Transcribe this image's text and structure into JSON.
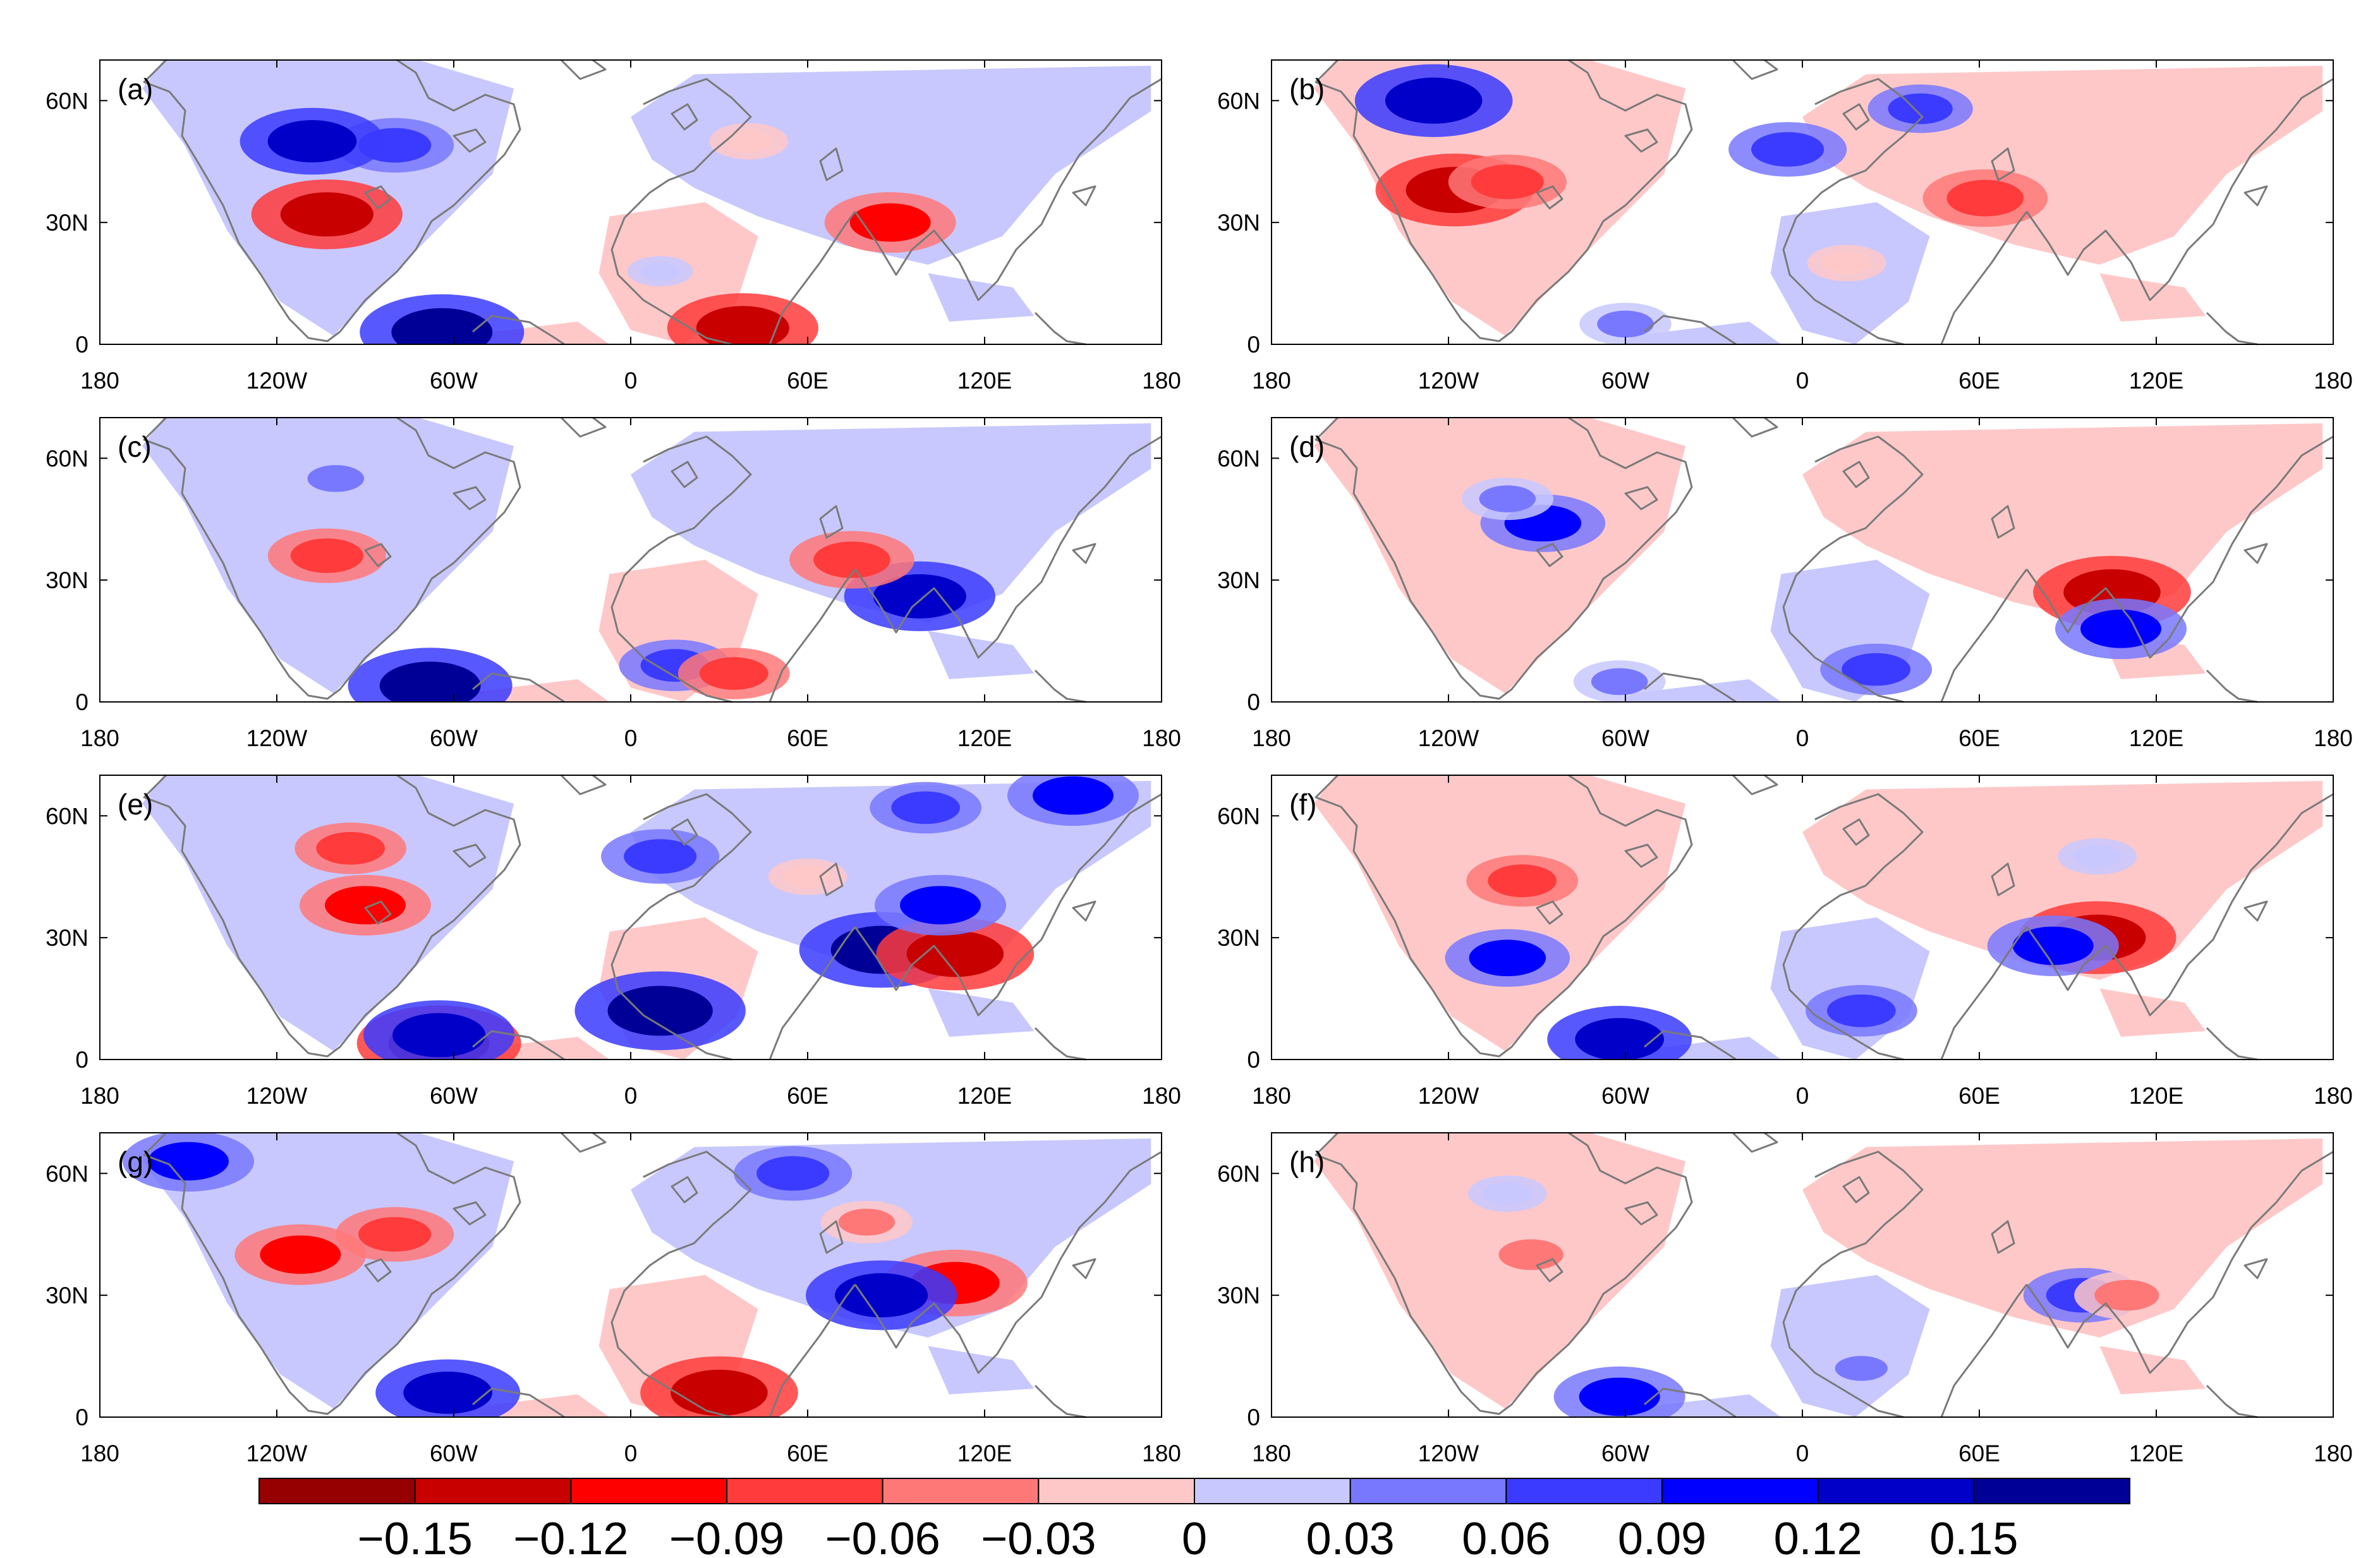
{
  "figure": {
    "description_type": "multi-panel map figure",
    "colormap_hex": [
      "#960000",
      "#c80000",
      "#ff0000",
      "#ff3b3b",
      "#ff7878",
      "#ffc8c8",
      "#c8c8ff",
      "#7878ff",
      "#3b3bff",
      "#0000ff",
      "#0000c8",
      "#000096"
    ]
  },
  "chart_data": [
    {
      "type": "heatmap",
      "panel": "(a)",
      "x_ticks": [
        "180",
        "120W",
        "60W",
        "0",
        "60E",
        "120E",
        "180"
      ],
      "y_ticks": [
        "0",
        "30N",
        "60N"
      ],
      "xlim": [
        -180,
        180
      ],
      "ylim": [
        0,
        70
      ],
      "hotspots": [
        {
          "lon": -103,
          "lat": 32,
          "value": -0.13
        },
        {
          "lon": -80,
          "lat": 49,
          "value": 0.08
        },
        {
          "lon": -108,
          "lat": 50,
          "value": 0.12
        },
        {
          "lon": -64,
          "lat": 3,
          "value": 0.15
        },
        {
          "lon": 38,
          "lat": 4,
          "value": -0.13
        },
        {
          "lon": 88,
          "lat": 30,
          "value": -0.1
        },
        {
          "lon": 40,
          "lat": 50,
          "value": -0.02
        },
        {
          "lon": 100,
          "lat": 55,
          "value": 0.02
        },
        {
          "lon": 10,
          "lat": 18,
          "value": 0.0
        }
      ]
    },
    {
      "type": "heatmap",
      "panel": "(b)",
      "x_ticks": [
        "180",
        "120W",
        "60W",
        "0",
        "60E",
        "120E",
        "180"
      ],
      "y_ticks": [
        "0",
        "30N",
        "60N"
      ],
      "xlim": [
        -180,
        180
      ],
      "ylim": [
        0,
        70
      ],
      "hotspots": [
        {
          "lon": -118,
          "lat": 38,
          "value": -0.14
        },
        {
          "lon": -100,
          "lat": 40,
          "value": -0.08
        },
        {
          "lon": -125,
          "lat": 60,
          "value": 0.14
        },
        {
          "lon": -60,
          "lat": 5,
          "value": 0.04
        },
        {
          "lon": 62,
          "lat": 36,
          "value": -0.09
        },
        {
          "lon": -5,
          "lat": 48,
          "value": 0.08
        },
        {
          "lon": 40,
          "lat": 58,
          "value": 0.06
        },
        {
          "lon": 100,
          "lat": 45,
          "value": -0.02
        },
        {
          "lon": 15,
          "lat": 20,
          "value": -0.02
        }
      ]
    },
    {
      "type": "heatmap",
      "panel": "(c)",
      "x_ticks": [
        "180",
        "120W",
        "60W",
        "0",
        "60E",
        "120E",
        "180"
      ],
      "y_ticks": [
        "0",
        "30N",
        "60N"
      ],
      "xlim": [
        -180,
        180
      ],
      "ylim": [
        0,
        70
      ],
      "hotspots": [
        {
          "lon": -103,
          "lat": 36,
          "value": -0.08
        },
        {
          "lon": -68,
          "lat": 4,
          "value": 0.15
        },
        {
          "lon": 98,
          "lat": 26,
          "value": 0.13
        },
        {
          "lon": 75,
          "lat": 35,
          "value": -0.09
        },
        {
          "lon": 15,
          "lat": 9,
          "value": 0.07
        },
        {
          "lon": 35,
          "lat": 7,
          "value": -0.07
        },
        {
          "lon": -100,
          "lat": 55,
          "value": 0.04
        },
        {
          "lon": 60,
          "lat": 55,
          "value": 0.02
        }
      ]
    },
    {
      "type": "heatmap",
      "panel": "(d)",
      "x_ticks": [
        "180",
        "120W",
        "60W",
        "0",
        "60E",
        "120E",
        "180"
      ],
      "y_ticks": [
        "0",
        "30N",
        "60N"
      ],
      "xlim": [
        -180,
        180
      ],
      "ylim": [
        0,
        70
      ],
      "hotspots": [
        {
          "lon": -88,
          "lat": 44,
          "value": 0.09
        },
        {
          "lon": -100,
          "lat": 50,
          "value": 0.04
        },
        {
          "lon": 105,
          "lat": 27,
          "value": -0.14
        },
        {
          "lon": 108,
          "lat": 18,
          "value": 0.1
        },
        {
          "lon": 25,
          "lat": 8,
          "value": 0.07
        },
        {
          "lon": -62,
          "lat": 5,
          "value": 0.04
        },
        {
          "lon": 60,
          "lat": 55,
          "value": -0.02
        },
        {
          "lon": 20,
          "lat": 25,
          "value": 0.02
        }
      ]
    },
    {
      "type": "heatmap",
      "panel": "(e)",
      "x_ticks": [
        "180",
        "120W",
        "60W",
        "0",
        "60E",
        "120E",
        "180"
      ],
      "y_ticks": [
        "0",
        "30N",
        "60N"
      ],
      "xlim": [
        -180,
        180
      ],
      "ylim": [
        0,
        70
      ],
      "hotspots": [
        {
          "lon": -90,
          "lat": 38,
          "value": -0.1
        },
        {
          "lon": -95,
          "lat": 52,
          "value": -0.07
        },
        {
          "lon": -65,
          "lat": 4,
          "value": -0.15
        },
        {
          "lon": -65,
          "lat": 6,
          "value": 0.13
        },
        {
          "lon": 10,
          "lat": 12,
          "value": 0.16
        },
        {
          "lon": 85,
          "lat": 27,
          "value": 0.15
        },
        {
          "lon": 110,
          "lat": 26,
          "value": -0.14
        },
        {
          "lon": 105,
          "lat": 38,
          "value": 0.1
        },
        {
          "lon": 150,
          "lat": 65,
          "value": 0.1
        },
        {
          "lon": 100,
          "lat": 62,
          "value": 0.07
        },
        {
          "lon": 10,
          "lat": 50,
          "value": 0.08
        },
        {
          "lon": 60,
          "lat": 45,
          "value": -0.02
        }
      ]
    },
    {
      "type": "heatmap",
      "panel": "(f)",
      "x_ticks": [
        "180",
        "120W",
        "60W",
        "0",
        "60E",
        "120E",
        "180"
      ],
      "y_ticks": [
        "0",
        "30N",
        "60N"
      ],
      "xlim": [
        -180,
        180
      ],
      "ylim": [
        0,
        70
      ],
      "hotspots": [
        {
          "lon": 100,
          "lat": 30,
          "value": -0.14
        },
        {
          "lon": 85,
          "lat": 28,
          "value": 0.1
        },
        {
          "lon": -95,
          "lat": 44,
          "value": -0.07
        },
        {
          "lon": -100,
          "lat": 25,
          "value": 0.09
        },
        {
          "lon": -62,
          "lat": 5,
          "value": 0.12
        },
        {
          "lon": 20,
          "lat": 12,
          "value": 0.07
        },
        {
          "lon": 60,
          "lat": 55,
          "value": -0.02
        },
        {
          "lon": 100,
          "lat": 50,
          "value": 0.02
        }
      ]
    },
    {
      "type": "heatmap",
      "panel": "(g)",
      "x_ticks": [
        "180",
        "120W",
        "60W",
        "0",
        "60E",
        "120E",
        "180"
      ],
      "y_ticks": [
        "0",
        "30N",
        "60N"
      ],
      "xlim": [
        -180,
        180
      ],
      "ylim": [
        0,
        70
      ],
      "hotspots": [
        {
          "lon": -112,
          "lat": 40,
          "value": -0.1
        },
        {
          "lon": -80,
          "lat": 45,
          "value": -0.08
        },
        {
          "lon": -62,
          "lat": 6,
          "value": 0.12
        },
        {
          "lon": 30,
          "lat": 6,
          "value": -0.14
        },
        {
          "lon": 110,
          "lat": 33,
          "value": -0.12
        },
        {
          "lon": 85,
          "lat": 30,
          "value": 0.13
        },
        {
          "lon": 55,
          "lat": 60,
          "value": 0.08
        },
        {
          "lon": 80,
          "lat": 48,
          "value": -0.04
        },
        {
          "lon": -150,
          "lat": 63,
          "value": 0.1
        }
      ]
    },
    {
      "type": "heatmap",
      "panel": "(h)",
      "x_ticks": [
        "180",
        "120W",
        "60W",
        "0",
        "60E",
        "120E",
        "180"
      ],
      "y_ticks": [
        "0",
        "30N",
        "60N"
      ],
      "xlim": [
        -180,
        180
      ],
      "ylim": [
        0,
        70
      ],
      "hotspots": [
        {
          "lon": -92,
          "lat": 40,
          "value": -0.06
        },
        {
          "lon": -62,
          "lat": 5,
          "value": 0.1
        },
        {
          "lon": 95,
          "lat": 30,
          "value": 0.08
        },
        {
          "lon": 110,
          "lat": 30,
          "value": -0.06
        },
        {
          "lon": 20,
          "lat": 12,
          "value": 0.03
        },
        {
          "lon": 60,
          "lat": 55,
          "value": -0.02
        },
        {
          "lon": -100,
          "lat": 55,
          "value": 0.02
        }
      ]
    }
  ],
  "colorbar": {
    "boundaries": [
      -0.18,
      -0.15,
      -0.12,
      -0.09,
      -0.06,
      -0.03,
      0,
      0.03,
      0.06,
      0.09,
      0.12,
      0.15,
      0.18
    ],
    "labels": [
      "−0.15",
      "−0.12",
      "−0.09",
      "−0.06",
      "−0.03",
      "0",
      "0.03",
      "0.06",
      "0.09",
      "0.12",
      "0.15"
    ]
  }
}
